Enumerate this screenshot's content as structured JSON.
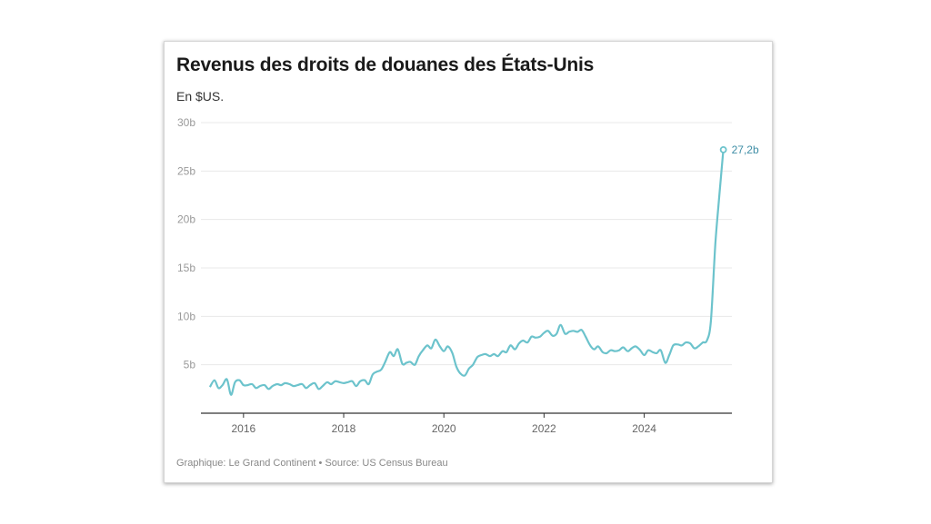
{
  "header": {
    "title": "Revenus des droits de douanes des États-Unis",
    "subtitle": "En $US."
  },
  "footer": {
    "source": "Graphique: Le Grand Continent • Source: US Census Bureau"
  },
  "colors": {
    "line": "#6cc3cc",
    "end_label": "#3f8ea6",
    "grid": "#e8e8e8",
    "axis": "#333333"
  },
  "chart_data": {
    "type": "line",
    "title": "Revenus des droits de douanes des États-Unis",
    "subtitle": "En $US.",
    "ylim": [
      0,
      30
    ],
    "yticks": [
      5,
      10,
      15,
      20,
      25,
      30
    ],
    "ytick_labels": [
      "5b",
      "10b",
      "15b",
      "20b",
      "25b",
      "30b"
    ],
    "xlim": [
      2015.15,
      2025.75
    ],
    "xticks": [
      2016,
      2018,
      2020,
      2022,
      2024
    ],
    "xtick_labels": [
      "2016",
      "2018",
      "2020",
      "2022",
      "2024"
    ],
    "grid": true,
    "end_label": "27,2b",
    "series": [
      {
        "values": [
          [
            2015.33,
            2.7
          ],
          [
            2015.42,
            3.4
          ],
          [
            2015.5,
            2.6
          ],
          [
            2015.58,
            2.9
          ],
          [
            2015.67,
            3.5
          ],
          [
            2015.75,
            1.9
          ],
          [
            2015.83,
            3.2
          ],
          [
            2015.92,
            3.4
          ],
          [
            2016.0,
            2.9
          ],
          [
            2016.08,
            2.9
          ],
          [
            2016.17,
            3.0
          ],
          [
            2016.25,
            2.6
          ],
          [
            2016.33,
            2.8
          ],
          [
            2016.42,
            2.9
          ],
          [
            2016.5,
            2.5
          ],
          [
            2016.58,
            2.8
          ],
          [
            2016.67,
            3.0
          ],
          [
            2016.75,
            2.9
          ],
          [
            2016.83,
            3.1
          ],
          [
            2016.92,
            3.0
          ],
          [
            2017.0,
            2.8
          ],
          [
            2017.08,
            2.9
          ],
          [
            2017.17,
            3.0
          ],
          [
            2017.25,
            2.6
          ],
          [
            2017.33,
            2.9
          ],
          [
            2017.42,
            3.1
          ],
          [
            2017.5,
            2.5
          ],
          [
            2017.58,
            2.8
          ],
          [
            2017.67,
            3.2
          ],
          [
            2017.75,
            3.0
          ],
          [
            2017.83,
            3.3
          ],
          [
            2017.92,
            3.2
          ],
          [
            2018.0,
            3.1
          ],
          [
            2018.08,
            3.2
          ],
          [
            2018.17,
            3.3
          ],
          [
            2018.25,
            2.8
          ],
          [
            2018.33,
            3.3
          ],
          [
            2018.42,
            3.4
          ],
          [
            2018.5,
            3.0
          ],
          [
            2018.58,
            4.0
          ],
          [
            2018.67,
            4.3
          ],
          [
            2018.75,
            4.5
          ],
          [
            2018.83,
            5.3
          ],
          [
            2018.92,
            6.3
          ],
          [
            2019.0,
            5.9
          ],
          [
            2019.08,
            6.6
          ],
          [
            2019.17,
            5.1
          ],
          [
            2019.25,
            5.2
          ],
          [
            2019.33,
            5.3
          ],
          [
            2019.42,
            5.0
          ],
          [
            2019.5,
            5.9
          ],
          [
            2019.58,
            6.5
          ],
          [
            2019.67,
            7.0
          ],
          [
            2019.75,
            6.7
          ],
          [
            2019.83,
            7.6
          ],
          [
            2019.92,
            6.9
          ],
          [
            2020.0,
            6.4
          ],
          [
            2020.08,
            6.9
          ],
          [
            2020.17,
            6.2
          ],
          [
            2020.25,
            4.8
          ],
          [
            2020.33,
            4.1
          ],
          [
            2020.42,
            3.9
          ],
          [
            2020.5,
            4.6
          ],
          [
            2020.58,
            5.0
          ],
          [
            2020.67,
            5.8
          ],
          [
            2020.75,
            6.0
          ],
          [
            2020.83,
            6.1
          ],
          [
            2020.92,
            5.9
          ],
          [
            2021.0,
            6.1
          ],
          [
            2021.08,
            5.9
          ],
          [
            2021.17,
            6.4
          ],
          [
            2021.25,
            6.3
          ],
          [
            2021.33,
            7.0
          ],
          [
            2021.42,
            6.6
          ],
          [
            2021.5,
            7.2
          ],
          [
            2021.58,
            7.5
          ],
          [
            2021.67,
            7.3
          ],
          [
            2021.75,
            7.9
          ],
          [
            2021.83,
            7.8
          ],
          [
            2021.92,
            7.9
          ],
          [
            2022.0,
            8.3
          ],
          [
            2022.08,
            8.5
          ],
          [
            2022.17,
            8.0
          ],
          [
            2022.25,
            8.2
          ],
          [
            2022.33,
            9.1
          ],
          [
            2022.42,
            8.2
          ],
          [
            2022.5,
            8.4
          ],
          [
            2022.58,
            8.5
          ],
          [
            2022.67,
            8.4
          ],
          [
            2022.75,
            8.6
          ],
          [
            2022.83,
            7.9
          ],
          [
            2022.92,
            7.0
          ],
          [
            2023.0,
            6.6
          ],
          [
            2023.08,
            6.9
          ],
          [
            2023.17,
            6.3
          ],
          [
            2023.25,
            6.2
          ],
          [
            2023.33,
            6.5
          ],
          [
            2023.42,
            6.4
          ],
          [
            2023.5,
            6.5
          ],
          [
            2023.58,
            6.8
          ],
          [
            2023.67,
            6.4
          ],
          [
            2023.75,
            6.7
          ],
          [
            2023.83,
            6.9
          ],
          [
            2023.92,
            6.5
          ],
          [
            2024.0,
            6.0
          ],
          [
            2024.08,
            6.5
          ],
          [
            2024.17,
            6.3
          ],
          [
            2024.25,
            6.2
          ],
          [
            2024.33,
            6.5
          ],
          [
            2024.42,
            5.2
          ],
          [
            2024.5,
            6.0
          ],
          [
            2024.58,
            7.0
          ],
          [
            2024.67,
            7.1
          ],
          [
            2024.75,
            7.0
          ],
          [
            2024.83,
            7.3
          ],
          [
            2024.92,
            7.2
          ],
          [
            2025.0,
            6.7
          ],
          [
            2025.08,
            6.9
          ],
          [
            2025.17,
            7.3
          ],
          [
            2025.25,
            7.5
          ],
          [
            2025.33,
            9.5
          ],
          [
            2025.42,
            17.5
          ],
          [
            2025.5,
            22.5
          ],
          [
            2025.58,
            27.2
          ]
        ]
      }
    ]
  }
}
